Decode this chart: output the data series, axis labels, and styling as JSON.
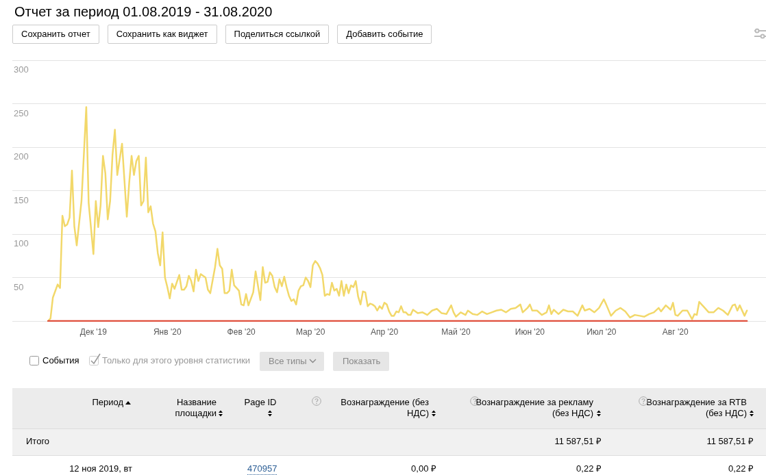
{
  "chart_data": [
    {
      "type": "line",
      "title": "Отчет за период 01.08.2019 - 31.08.2020",
      "xlim": [
        "2019-10-28",
        "2020-09-08"
      ],
      "xticks": [
        {
          "value": "2019-12-01",
          "label": "Дек '19"
        },
        {
          "value": "2020-01-01",
          "label": "Янв '20"
        },
        {
          "value": "2020-02-01",
          "label": "Фев '20"
        },
        {
          "value": "2020-03-01",
          "label": "Мар '20"
        },
        {
          "value": "2020-04-01",
          "label": "Апр '20"
        },
        {
          "value": "2020-05-01",
          "label": "Май '20"
        },
        {
          "value": "2020-06-01",
          "label": "Июн '20"
        },
        {
          "value": "2020-07-01",
          "label": "Июл '20"
        },
        {
          "value": "2020-08-01",
          "label": "Авг '20"
        }
      ],
      "ylim": [
        0,
        300
      ],
      "yticks": [
        {
          "value": 0,
          "label": null
        },
        50,
        100,
        150,
        200,
        250,
        300
      ],
      "grid": "y",
      "marker": "none",
      "series": [
        {
          "color": "#f2d86a",
          "x": [
            "2019-11-12",
            "2019-11-13",
            "2019-11-14",
            "2019-11-16",
            "2019-11-17",
            "2019-11-18",
            "2019-11-19",
            "2019-11-20",
            "2019-11-21",
            "2019-11-22",
            "2019-11-23",
            "2019-11-24",
            "2019-11-26",
            "2019-11-28",
            "2019-11-29",
            "2019-12-01",
            "2019-12-02",
            "2019-12-03",
            "2019-12-04",
            "2019-12-05",
            "2019-12-06",
            "2019-12-07",
            "2019-12-08",
            "2019-12-09",
            "2019-12-10",
            "2019-12-11",
            "2019-12-13",
            "2019-12-14",
            "2019-12-15",
            "2019-12-16",
            "2019-12-17",
            "2019-12-18",
            "2019-12-19",
            "2019-12-20",
            "2019-12-21",
            "2019-12-22",
            "2019-12-23",
            "2019-12-24",
            "2019-12-25",
            "2019-12-26",
            "2019-12-27",
            "2019-12-28",
            "2019-12-29",
            "2019-12-30",
            "2019-12-31",
            "2020-01-01",
            "2020-01-02",
            "2020-01-03",
            "2020-01-04",
            "2020-01-06",
            "2020-01-07",
            "2020-01-08",
            "2020-01-09",
            "2020-01-10",
            "2020-01-11",
            "2020-01-12",
            "2020-01-13",
            "2020-01-14",
            "2020-01-15",
            "2020-01-17",
            "2020-01-18",
            "2020-01-19",
            "2020-01-21",
            "2020-01-22",
            "2020-01-23",
            "2020-01-24",
            "2020-01-25",
            "2020-01-26",
            "2020-01-27",
            "2020-01-28",
            "2020-01-29",
            "2020-01-31",
            "2020-02-01",
            "2020-02-02",
            "2020-02-03",
            "2020-02-04",
            "2020-02-06",
            "2020-02-07",
            "2020-02-09",
            "2020-02-10",
            "2020-02-11",
            "2020-02-12",
            "2020-02-13",
            "2020-02-14",
            "2020-02-15",
            "2020-02-16",
            "2020-02-17",
            "2020-02-18",
            "2020-02-19",
            "2020-02-20",
            "2020-02-21",
            "2020-02-22",
            "2020-02-23",
            "2020-02-24",
            "2020-02-25",
            "2020-02-26",
            "2020-02-27",
            "2020-02-28",
            "2020-02-29",
            "2020-03-01",
            "2020-03-02",
            "2020-03-03",
            "2020-03-04",
            "2020-03-05",
            "2020-03-06",
            "2020-03-07",
            "2020-03-08",
            "2020-03-09",
            "2020-03-10",
            "2020-03-11",
            "2020-03-12",
            "2020-03-13",
            "2020-03-14",
            "2020-03-15",
            "2020-03-16",
            "2020-03-17",
            "2020-03-18",
            "2020-03-19",
            "2020-03-20",
            "2020-03-21",
            "2020-03-22",
            "2020-03-23",
            "2020-03-24",
            "2020-03-25",
            "2020-03-26",
            "2020-03-27",
            "2020-03-28",
            "2020-03-29",
            "2020-03-30",
            "2020-03-31",
            "2020-04-01",
            "2020-04-02",
            "2020-04-03",
            "2020-04-04",
            "2020-04-05",
            "2020-04-06",
            "2020-04-07",
            "2020-04-08",
            "2020-04-09",
            "2020-04-10",
            "2020-04-11",
            "2020-04-12",
            "2020-04-13",
            "2020-04-15",
            "2020-04-17",
            "2020-04-19",
            "2020-04-21",
            "2020-04-23",
            "2020-04-25",
            "2020-04-27",
            "2020-04-29",
            "2020-04-30",
            "2020-05-01",
            "2020-05-03",
            "2020-05-05",
            "2020-05-06",
            "2020-05-08",
            "2020-05-10",
            "2020-05-12",
            "2020-05-14",
            "2020-05-16",
            "2020-05-18",
            "2020-05-20",
            "2020-05-22",
            "2020-05-24",
            "2020-05-26",
            "2020-05-28",
            "2020-05-29",
            "2020-05-31",
            "2020-06-01",
            "2020-06-02",
            "2020-06-04",
            "2020-06-06",
            "2020-06-08",
            "2020-06-09",
            "2020-06-10",
            "2020-06-11",
            "2020-06-13",
            "2020-06-15",
            "2020-06-17",
            "2020-06-19",
            "2020-06-21",
            "2020-06-23",
            "2020-06-24",
            "2020-06-26",
            "2020-06-28",
            "2020-06-30",
            "2020-07-02",
            "2020-07-03",
            "2020-07-05",
            "2020-07-07",
            "2020-07-09",
            "2020-07-11",
            "2020-07-13",
            "2020-07-15",
            "2020-07-17",
            "2020-07-19",
            "2020-07-21",
            "2020-07-23",
            "2020-07-25",
            "2020-07-26",
            "2020-07-28",
            "2020-07-30",
            "2020-07-31",
            "2020-08-01",
            "2020-08-02",
            "2020-08-04",
            "2020-08-06",
            "2020-08-08",
            "2020-08-09",
            "2020-08-10",
            "2020-08-11",
            "2020-08-13",
            "2020-08-15",
            "2020-08-17",
            "2020-08-19",
            "2020-08-21",
            "2020-08-23",
            "2020-08-25",
            "2020-08-26",
            "2020-08-27",
            "2020-08-28",
            "2020-08-30",
            "2020-08-31"
          ],
          "values": [
            0,
            3,
            27,
            42,
            38,
            121,
            109,
            111,
            119,
            173,
            109,
            87,
            138,
            246,
            136,
            77,
            138,
            108,
            133,
            190,
            170,
            117,
            138,
            191,
            220,
            168,
            204,
            162,
            120,
            159,
            190,
            168,
            184,
            190,
            133,
            138,
            188,
            125,
            132,
            112,
            103,
            78,
            64,
            102,
            50,
            39,
            26,
            43,
            37,
            53,
            36,
            36,
            40,
            52,
            46,
            34,
            59,
            46,
            54,
            50,
            36,
            32,
            62,
            83,
            64,
            60,
            32,
            32,
            35,
            59,
            41,
            35,
            19,
            18,
            31,
            18,
            33,
            57,
            24,
            62,
            44,
            45,
            56,
            52,
            39,
            33,
            48,
            40,
            51,
            39,
            29,
            23,
            25,
            19,
            35,
            40,
            41,
            50,
            46,
            39,
            64,
            69,
            66,
            61,
            53,
            29,
            31,
            30,
            44,
            35,
            37,
            29,
            46,
            29,
            42,
            32,
            41,
            39,
            46,
            28,
            19,
            34,
            33,
            17,
            20,
            19,
            17,
            12,
            17,
            14,
            21,
            19,
            11,
            6,
            6,
            11,
            10,
            17,
            10,
            10,
            7,
            7,
            13,
            9,
            10,
            7,
            12,
            14,
            9,
            8,
            18,
            10,
            5,
            10,
            7,
            12,
            8,
            7,
            11,
            8,
            10,
            12,
            13,
            10,
            14,
            15,
            19,
            10,
            15,
            19,
            12,
            12,
            7,
            10,
            18,
            8,
            13,
            8,
            13,
            11,
            11,
            6,
            18,
            12,
            14,
            10,
            15,
            25,
            19,
            6,
            12,
            15,
            11,
            4,
            7,
            6,
            5,
            8,
            10,
            15,
            11,
            18,
            13,
            21,
            7,
            6,
            12,
            12,
            2,
            8,
            7,
            22,
            16,
            10,
            10,
            15,
            12,
            7,
            18,
            19,
            12,
            18,
            6,
            12
          ]
        },
        {
          "color": "#e0513f",
          "x": [
            "2019-11-12",
            "2020-08-31"
          ],
          "values": [
            0,
            0
          ]
        }
      ],
      "annotations": [
        "Сохранить отчет",
        "Сохранить как виджет",
        "Поделиться ссылкой",
        "Добавить событие",
        "События",
        "Только для этого уровня статистики",
        "Все типы",
        "Показать"
      ]
    },
    {
      "type": "other",
      "annotations": [
        "Период",
        "Название площадки",
        "Page ID",
        "Вознаграждение (без НДС)",
        "Вознаграждение за рекламу (без НДС)",
        "Вознаграждение за RTB (без НДС)",
        "Итого",
        "11 587,51 ₽",
        "11 587,51 ₽",
        "12 ноя 2019, вт",
        "470957",
        "0,00 ₽",
        "0,22 ₽",
        "0,22 ₽"
      ]
    }
  ]
}
